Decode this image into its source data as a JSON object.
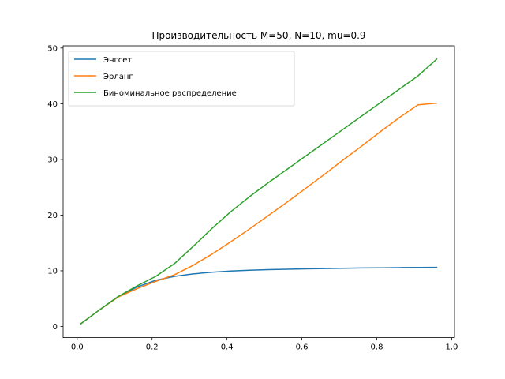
{
  "chart_data": {
    "type": "line",
    "title": "Производительность M=50, N=10, mu=0.9",
    "xlabel": "",
    "ylabel": "",
    "xlim": [
      -0.0375,
      1.0075
    ],
    "ylim": [
      -2.0,
      50.4
    ],
    "xticks": [
      0,
      0.2,
      0.4,
      0.6,
      0.8,
      1.0
    ],
    "xtick_labels": [
      "0.0",
      "0.2",
      "0.4",
      "0.6",
      "0.8",
      "1.0"
    ],
    "yticks": [
      0,
      10,
      20,
      30,
      40,
      50
    ],
    "ytick_labels": [
      "0",
      "10",
      "20",
      "30",
      "40",
      "50"
    ],
    "grid": false,
    "legend_position": "top-left",
    "x": [
      0.01,
      0.06,
      0.11,
      0.16,
      0.21,
      0.26,
      0.31,
      0.36,
      0.41,
      0.46,
      0.51,
      0.56,
      0.61,
      0.66,
      0.71,
      0.76,
      0.81,
      0.86,
      0.91,
      0.96
    ],
    "series": [
      {
        "name": "Энгсет",
        "color": "#1f77b4",
        "values": [
          0.5,
          3.0,
          5.4,
          7.1,
          8.3,
          9.0,
          9.45,
          9.75,
          9.95,
          10.1,
          10.2,
          10.28,
          10.35,
          10.4,
          10.45,
          10.5,
          10.53,
          10.57,
          10.6,
          10.62
        ]
      },
      {
        "name": "Эрланг",
        "color": "#ff7f0e",
        "values": [
          0.5,
          3.0,
          5.3,
          6.8,
          8.1,
          9.3,
          11.0,
          13.0,
          15.2,
          17.5,
          19.9,
          22.3,
          24.8,
          27.3,
          29.9,
          32.4,
          35.0,
          37.5,
          39.8,
          40.1
        ]
      },
      {
        "name": "Биноминальное распределение",
        "color": "#2ca02c",
        "values": [
          0.5,
          3.0,
          5.4,
          7.3,
          9.0,
          11.3,
          14.4,
          17.6,
          20.6,
          23.3,
          25.8,
          28.2,
          30.6,
          33.0,
          35.4,
          37.8,
          40.2,
          42.6,
          45.0,
          48.0
        ]
      }
    ]
  }
}
